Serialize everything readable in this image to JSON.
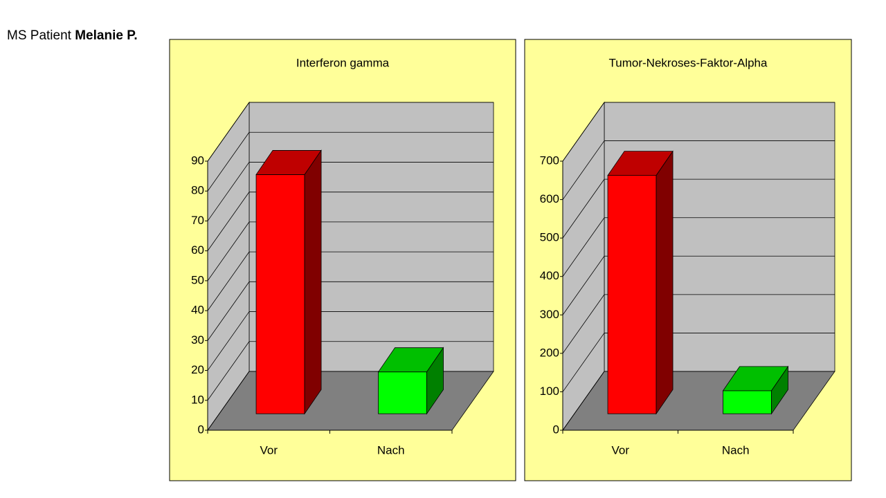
{
  "header": {
    "prefix": "MS Patient",
    "name": "Melanie P."
  },
  "chart_data": [
    {
      "type": "bar3d",
      "title": "Interferon gamma",
      "categories": [
        "Vor",
        "Nach"
      ],
      "values": [
        80,
        14
      ],
      "colors": [
        "#ff0000",
        "#00ff00"
      ],
      "ylim": [
        0,
        90
      ],
      "yticks": [
        0,
        10,
        20,
        30,
        40,
        50,
        60,
        70,
        80,
        90
      ],
      "grid": true
    },
    {
      "type": "bar3d",
      "title": "Tumor-Nekroses-Faktor-Alpha",
      "categories": [
        "Vor",
        "Nach"
      ],
      "values": [
        620,
        60
      ],
      "colors": [
        "#ff0000",
        "#00ff00"
      ],
      "ylim": [
        0,
        700
      ],
      "yticks": [
        0,
        100,
        200,
        300,
        400,
        500,
        600,
        700
      ],
      "grid": true
    }
  ]
}
